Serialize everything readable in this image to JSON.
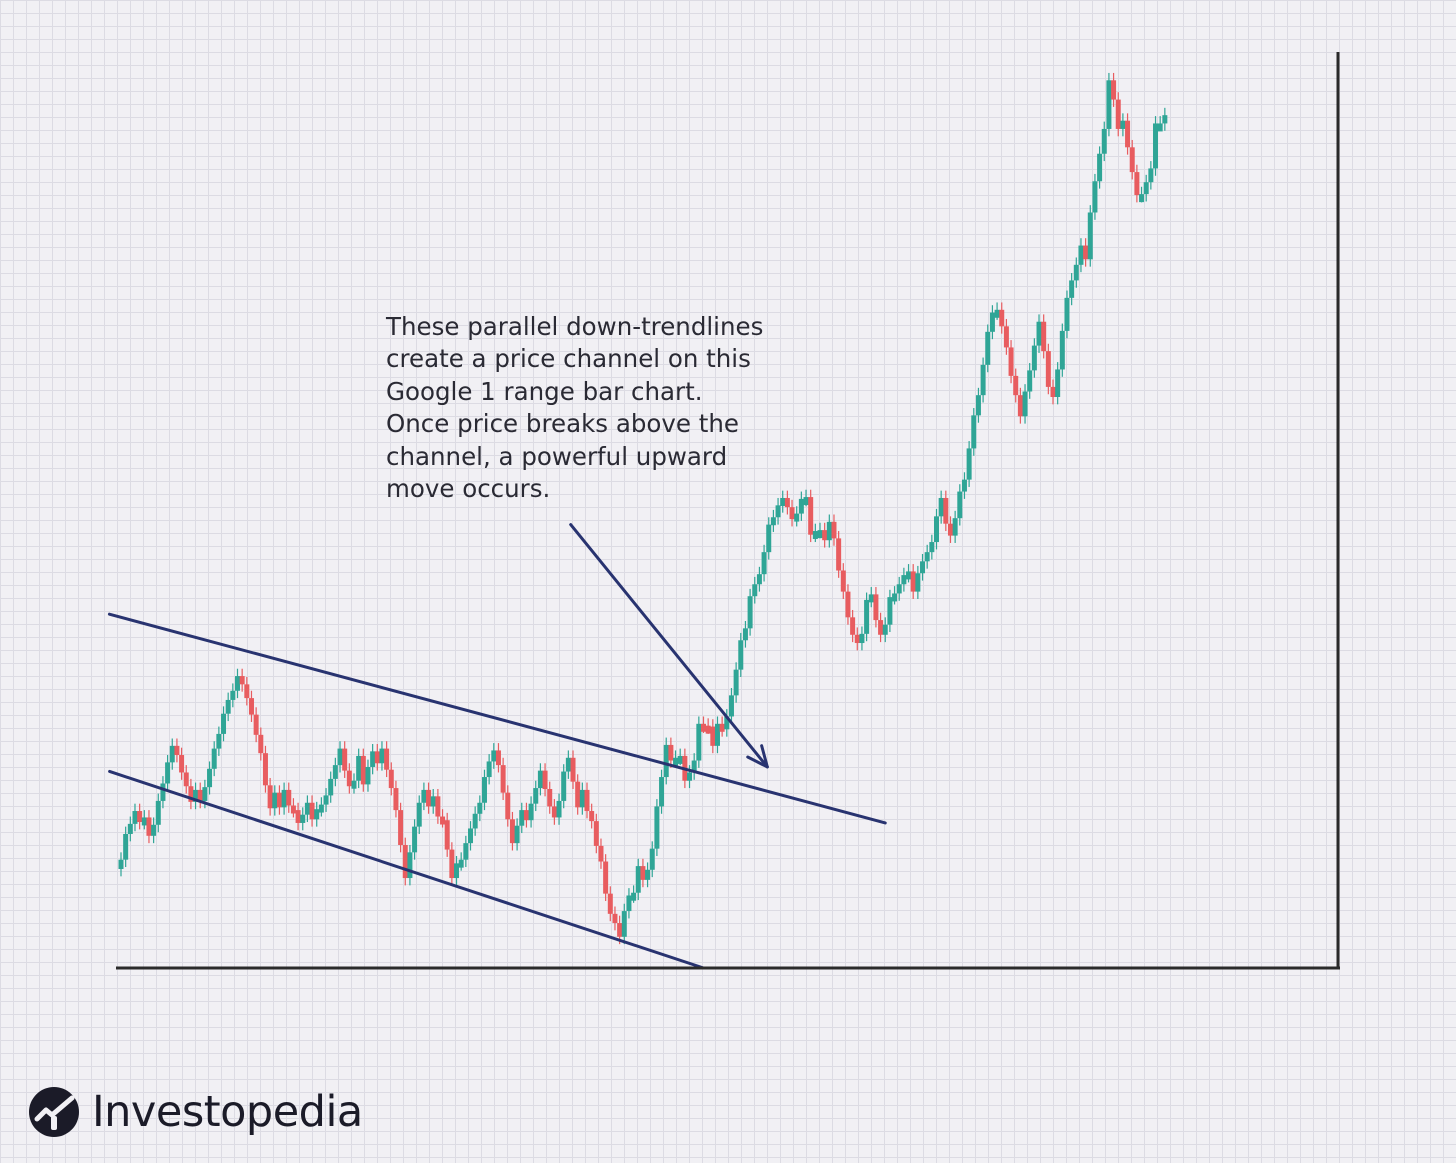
{
  "colors": {
    "background": "#f1f0f4",
    "grid": "#dcdbe3",
    "up": "#2fa596",
    "down": "#e85c5f",
    "trendline": "#283370",
    "axis": "#2a2a2a",
    "text": "#2a2a34",
    "brand": "#1b1b28"
  },
  "annotation": {
    "lines": [
      "These parallel down-trendlines",
      "create a price channel on this",
      "Google 1 range bar chart.",
      "Once price breaks above the",
      "channel, a powerful upward",
      "move occurs."
    ]
  },
  "brand": {
    "name": "Investopedia",
    "logo_icon": "investopedia-logo-icon"
  },
  "chart_data": {
    "type": "range-bar",
    "title": "",
    "xlabel": "",
    "ylabel": "",
    "grid": true,
    "ylim": [
      0,
      100
    ],
    "series": [
      {
        "values": [
          11.8,
          14.6,
          15.7,
          17.1,
          15.9,
          16.4,
          14.4,
          15.6,
          18.2,
          20.1,
          22.4,
          24.2,
          23.2,
          21.3,
          19.8,
          18.1,
          19.4,
          18.2,
          19.7,
          21.7,
          23.9,
          25.5,
          27.7,
          29.2,
          30.2,
          31.8,
          30.9,
          29.4,
          27.6,
          25.4,
          23.4,
          19.9,
          17.4,
          19.1,
          17.5,
          19.4,
          17.7,
          17.2,
          15.8,
          16.7,
          18.0,
          16.2,
          17.3,
          17.8,
          18.8,
          20.6,
          22.1,
          23.9,
          21.5,
          19.8,
          20.4,
          23.1,
          20.0,
          21.9,
          23.6,
          22.3,
          23.9,
          21.6,
          19.6,
          17.2,
          13.4,
          9.8,
          12.6,
          15.4,
          18.0,
          19.4,
          17.6,
          18.7,
          16.5,
          16.1,
          12.9,
          9.8,
          11.4,
          11.8,
          13.6,
          15.2,
          16.8,
          18.0,
          20.8,
          22.5,
          23.7,
          22.1,
          19.1,
          16.2,
          13.6,
          15.5,
          17.2,
          16.1,
          17.9,
          19.6,
          21.5,
          19.5,
          17.6,
          16.4,
          18.2,
          21.4,
          22.9,
          20.3,
          17.5,
          19.4,
          17.1,
          16.0,
          13.3,
          11.6,
          8.1,
          5.9,
          4.9,
          3.4,
          6.2,
          7.9,
          8.2,
          11.1,
          9.6,
          10.7,
          13.0,
          17.6,
          20.8,
          24.3,
          22.6,
          22.9,
          23.1,
          20.4,
          21.3,
          22.6,
          26.6,
          26.4,
          26.3,
          24.2,
          26.6,
          26.0,
          27.4,
          29.7,
          32.5,
          35.7,
          37.0,
          40.5,
          41.8,
          42.9,
          45.3,
          48.3,
          49.1,
          50.4,
          51.2,
          50.2,
          48.9,
          49.5,
          51.1,
          51.3,
          47.2,
          47.6,
          47.7,
          46.6,
          48.6,
          46.8,
          43.3,
          41.0,
          38.2,
          36.3,
          35.4,
          36.4,
          40.1,
          40.7,
          37.9,
          36.3,
          37.4,
          40.4,
          40.8,
          41.8,
          42.8,
          43.2,
          41.0,
          43.0,
          44.3,
          45.3,
          46.4,
          49.2,
          51.2,
          48.4,
          47.1,
          49.0,
          51.9,
          53.2,
          56.6,
          60.2,
          62.4,
          65.7,
          69.3,
          71.4,
          71.7,
          69.9,
          67.6,
          64.5,
          62.4,
          60.1,
          62.8,
          65.1,
          67.8,
          70.4,
          67.2,
          63.3,
          62.2,
          65.2,
          69.4,
          73.0,
          74.9,
          76.6,
          78.7,
          77.2,
          82.3,
          85.7,
          88.7,
          91.4,
          96.7,
          94.6,
          91.4,
          92.3,
          89.4,
          86.7,
          84.2,
          84.3,
          85.6,
          87.1,
          92.0,
          92.0,
          92.9
        ]
      }
    ],
    "trendlines": [
      {
        "name": "upper-trendline",
        "from": [
          0,
          38.2
        ],
        "to": [
          164,
          15.8
        ]
      },
      {
        "name": "lower-trendline",
        "from": [
          0,
          21.0
        ],
        "to": [
          125,
          0
        ]
      },
      {
        "name": "annotation-arrow",
        "from": [
          96.5,
          48.3
        ],
        "to": [
          138.7,
          21.9
        ]
      }
    ]
  }
}
